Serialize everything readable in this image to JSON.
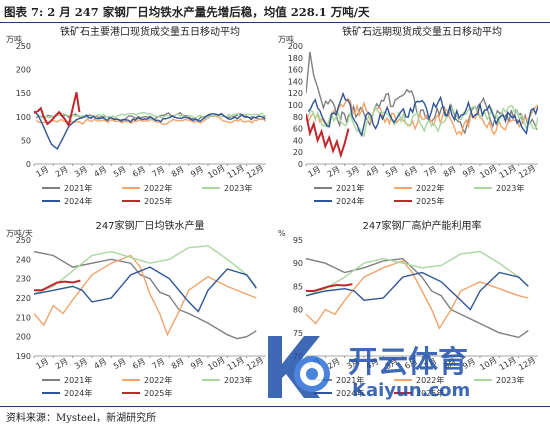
{
  "title": "图表 7: 2 月 247 家钢厂日均铁水产量先增后稳，均值 228.1 万吨/天",
  "source": "资料来源：Mysteel，新湖研究所",
  "watermark": {
    "brand": "开云体育",
    "url": "Kaiyun.com"
  },
  "colors": {
    "s2021": "#808080",
    "s2022": "#f2a46b",
    "s2023": "#a8d8a0",
    "s2024": "#2f5597",
    "s2025": "#c0282d",
    "s2025b": "#e6a2a6",
    "s2020": "#7ec8e3"
  },
  "chart_data": [
    {
      "id": "c1",
      "type": "line",
      "title": "铁矿石主要港口现货成交量五日移动平均",
      "unit": "万吨",
      "months": [
        "1月",
        "2月",
        "3月",
        "4月",
        "5月",
        "6月",
        "7月",
        "8月",
        "9月",
        "10月",
        "11月",
        "12月"
      ],
      "ylim": [
        0,
        250
      ],
      "yticks": [
        0,
        50,
        100,
        150,
        200,
        250
      ],
      "legend": [
        "2021年",
        "2022年",
        "2023年",
        "2024年",
        "2025年"
      ],
      "series": [
        {
          "name": "2021年",
          "color": "s2021",
          "base": 100,
          "amp": 9,
          "seed": 3
        },
        {
          "name": "2022年",
          "color": "s2022",
          "base": 92,
          "amp": 10,
          "seed": 7
        },
        {
          "name": "2023年",
          "color": "s2023",
          "base": 102,
          "amp": 9,
          "seed": 11
        },
        {
          "name": "2024年",
          "color": "s2024",
          "base": 98,
          "amp": 11,
          "seed": 17,
          "points": [
            [
              0,
              112
            ],
            [
              0.2,
              104
            ],
            [
              0.4,
              88
            ],
            [
              0.7,
              60
            ],
            [
              0.9,
              42
            ],
            [
              1.2,
              32
            ],
            [
              1.5,
              55
            ],
            [
              1.8,
              80
            ],
            [
              2.2,
              94
            ],
            [
              2.6,
              100
            ]
          ]
        },
        {
          "name": "2025年",
          "color": "s2025",
          "points": [
            [
              0,
              108
            ],
            [
              0.2,
              112
            ],
            [
              0.35,
              118
            ],
            [
              0.5,
              100
            ],
            [
              0.7,
              85
            ],
            [
              0.9,
              92
            ],
            [
              1.1,
              102
            ],
            [
              1.3,
              110
            ],
            [
              1.6,
              95
            ],
            [
              1.8,
              82
            ],
            [
              2.0,
              118
            ],
            [
              2.2,
              152
            ],
            [
              2.35,
              110
            ]
          ]
        }
      ]
    },
    {
      "id": "c2",
      "type": "line",
      "title": "铁矿石远期现货成交量五日移动平均",
      "unit": "万吨",
      "months": [
        "1月",
        "2月",
        "3月",
        "4月",
        "5月",
        "6月",
        "7月",
        "8月",
        "9月",
        "10月",
        "11月",
        "12月"
      ],
      "ylim": [
        0,
        200
      ],
      "yticks": [
        0,
        20,
        40,
        60,
        80,
        100,
        120,
        140,
        160,
        180,
        200
      ],
      "legend": [
        "2021年",
        "2022年",
        "2023年",
        "2024年",
        "2025年"
      ],
      "series": [
        {
          "name": "2021年",
          "color": "s2021",
          "base": 85,
          "amp": 40,
          "seed": 5,
          "points": [
            [
              0,
              120
            ],
            [
              0.2,
              190
            ],
            [
              0.4,
              150
            ],
            [
              0.6,
              130
            ],
            [
              0.9,
              95
            ]
          ]
        },
        {
          "name": "2022年",
          "color": "s2022",
          "base": 80,
          "amp": 34,
          "seed": 9
        },
        {
          "name": "2023年",
          "color": "s2023",
          "base": 78,
          "amp": 32,
          "seed": 13
        },
        {
          "name": "2024年",
          "color": "s2024",
          "base": 86,
          "amp": 38,
          "seed": 19
        },
        {
          "name": "2025年",
          "color": "s2025",
          "points": [
            [
              0,
              85
            ],
            [
              0.2,
              52
            ],
            [
              0.4,
              68
            ],
            [
              0.6,
              40
            ],
            [
              0.8,
              55
            ],
            [
              1.0,
              30
            ],
            [
              1.2,
              45
            ],
            [
              1.4,
              22
            ],
            [
              1.6,
              38
            ],
            [
              1.8,
              15
            ],
            [
              2.0,
              35
            ],
            [
              2.2,
              60
            ]
          ]
        }
      ]
    },
    {
      "id": "c3",
      "type": "line",
      "title": "247家钢厂日均铁水产量",
      "unit": "万吨/天",
      "months": [
        "1月",
        "2月",
        "3月",
        "4月",
        "5月",
        "6月",
        "7月",
        "8月",
        "9月",
        "10月",
        "11月",
        "12月"
      ],
      "ylim": [
        190,
        250
      ],
      "yticks": [
        190,
        200,
        210,
        220,
        230,
        240,
        250
      ],
      "legend": [
        "2021年",
        "2022年",
        "2023年",
        "2024年",
        "2025年"
      ],
      "series": [
        {
          "name": "2021年",
          "color": "s2021",
          "points": [
            [
              0,
              244
            ],
            [
              1,
              242
            ],
            [
              2,
              236
            ],
            [
              3,
              238
            ],
            [
              4,
              240
            ],
            [
              5,
              238
            ],
            [
              5.5,
              232
            ],
            [
              6,
              230
            ],
            [
              6.5,
              223
            ],
            [
              7,
              221
            ],
            [
              7.5,
              214
            ],
            [
              8,
              212
            ],
            [
              9,
              207
            ],
            [
              10,
              201
            ],
            [
              10.5,
              199
            ],
            [
              11,
              200
            ],
            [
              11.5,
              203
            ]
          ]
        },
        {
          "name": "2022年",
          "color": "s2022",
          "points": [
            [
              0,
              212
            ],
            [
              0.5,
              206
            ],
            [
              1,
              216
            ],
            [
              1.5,
              212
            ],
            [
              2,
              219
            ],
            [
              3,
              232
            ],
            [
              4,
              238
            ],
            [
              5,
              242
            ],
            [
              5.5,
              236
            ],
            [
              6,
              222
            ],
            [
              6.5,
              212
            ],
            [
              6.9,
              201
            ],
            [
              7.5,
              213
            ],
            [
              8,
              224
            ],
            [
              9,
              231
            ],
            [
              10,
              226
            ],
            [
              11,
              222
            ],
            [
              11.5,
              220
            ]
          ]
        },
        {
          "name": "2023年",
          "color": "s2023",
          "points": [
            [
              0,
              222
            ],
            [
              1,
              226
            ],
            [
              2,
              234
            ],
            [
              3,
              242
            ],
            [
              4,
              244
            ],
            [
              5,
              241
            ],
            [
              6,
              238
            ],
            [
              7,
              240
            ],
            [
              8,
              246
            ],
            [
              9,
              247
            ],
            [
              10,
              240
            ],
            [
              11,
              232
            ],
            [
              11.5,
              226
            ]
          ]
        },
        {
          "name": "2024年",
          "color": "s2024",
          "points": [
            [
              0,
              222
            ],
            [
              1,
              224
            ],
            [
              2,
              226
            ],
            [
              2.5,
              224
            ],
            [
              3,
              218
            ],
            [
              4,
              220
            ],
            [
              5,
              232
            ],
            [
              6,
              236
            ],
            [
              7,
              230
            ],
            [
              8,
              218
            ],
            [
              8.5,
              213
            ],
            [
              9,
              224
            ],
            [
              10,
              235
            ],
            [
              11,
              232
            ],
            [
              11.5,
              225
            ]
          ]
        },
        {
          "name": "2025年",
          "color": "s2025",
          "points": [
            [
              0,
              224
            ],
            [
              0.4,
              224
            ],
            [
              0.8,
              226
            ],
            [
              1.2,
              228
            ],
            [
              1.6,
              228.5
            ],
            [
              2,
              228
            ],
            [
              2.4,
              229
            ]
          ]
        }
      ]
    },
    {
      "id": "c4",
      "type": "line",
      "title": "247家钢厂高炉产能利用率",
      "unit": "%",
      "months": [
        "1月",
        "2月",
        "3月",
        "4月",
        "5月",
        "6月",
        "7月",
        "8月",
        "9月",
        "10月",
        "11月",
        "12月"
      ],
      "ylim": [
        70,
        95
      ],
      "yticks": [
        70,
        75,
        80,
        85,
        90,
        95
      ],
      "legend": [
        "2021年",
        "2022年",
        "2023年",
        "2024年",
        "2025年"
      ],
      "series": [
        {
          "name": "2021年",
          "color": "s2021",
          "points": [
            [
              0,
              91
            ],
            [
              1,
              90
            ],
            [
              2,
              88
            ],
            [
              3,
              89
            ],
            [
              4,
              90.5
            ],
            [
              5,
              91
            ],
            [
              5.5,
              89
            ],
            [
              6,
              87
            ],
            [
              6.5,
              84
            ],
            [
              7,
              83
            ],
            [
              7.5,
              80
            ],
            [
              8,
              79
            ],
            [
              9,
              77
            ],
            [
              10,
              75
            ],
            [
              10.5,
              74.5
            ],
            [
              11,
              74
            ],
            [
              11.5,
              75.5
            ]
          ]
        },
        {
          "name": "2022年",
          "color": "s2022",
          "points": [
            [
              0,
              79
            ],
            [
              0.5,
              77
            ],
            [
              1,
              80
            ],
            [
              1.5,
              79
            ],
            [
              2,
              82
            ],
            [
              3,
              87
            ],
            [
              4,
              89
            ],
            [
              5,
              90.5
            ],
            [
              5.5,
              88
            ],
            [
              6,
              84
            ],
            [
              6.5,
              80
            ],
            [
              6.9,
              76
            ],
            [
              7.5,
              80
            ],
            [
              8,
              84
            ],
            [
              9,
              86
            ],
            [
              10,
              84.5
            ],
            [
              11,
              83
            ],
            [
              11.5,
              82.5
            ]
          ]
        },
        {
          "name": "2023年",
          "color": "s2023",
          "points": [
            [
              0,
              83
            ],
            [
              1,
              84.5
            ],
            [
              2,
              87
            ],
            [
              3,
              90
            ],
            [
              4,
              91
            ],
            [
              5,
              90
            ],
            [
              6,
              89
            ],
            [
              7,
              89.5
            ],
            [
              8,
              92
            ],
            [
              9,
              92.5
            ],
            [
              10,
              90
            ],
            [
              11,
              87
            ],
            [
              11.5,
              85
            ]
          ]
        },
        {
          "name": "2024年",
          "color": "s2024",
          "points": [
            [
              0,
              83
            ],
            [
              1,
              84
            ],
            [
              2,
              84.5
            ],
            [
              2.5,
              84
            ],
            [
              3,
              82
            ],
            [
              4,
              82.5
            ],
            [
              5,
              87
            ],
            [
              6,
              88
            ],
            [
              7,
              86
            ],
            [
              8,
              82
            ],
            [
              8.5,
              80
            ],
            [
              9,
              84
            ],
            [
              10,
              88
            ],
            [
              11,
              87
            ],
            [
              11.5,
              85
            ]
          ]
        },
        {
          "name": "2025年",
          "color": "s2025",
          "points": [
            [
              0,
              84
            ],
            [
              0.4,
              84
            ],
            [
              0.8,
              84.5
            ],
            [
              1.2,
              85
            ],
            [
              1.6,
              85.3
            ],
            [
              2,
              85.2
            ],
            [
              2.4,
              85.5
            ]
          ]
        }
      ]
    }
  ]
}
